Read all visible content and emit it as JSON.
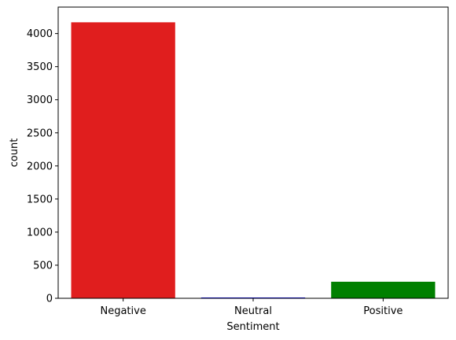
{
  "chart_data": {
    "type": "bar",
    "title": "",
    "xlabel": "Sentiment",
    "ylabel": "count",
    "categories": [
      "Negative",
      "Neutral",
      "Positive"
    ],
    "values": [
      4170,
      12,
      250
    ],
    "colors": [
      "#e01e1e",
      "#0000ff",
      "#008000"
    ],
    "ylim": [
      0,
      4400
    ],
    "yticks": [
      0,
      500,
      1000,
      1500,
      2000,
      2500,
      3000,
      3500,
      4000
    ],
    "grid": false,
    "legend": "none"
  }
}
